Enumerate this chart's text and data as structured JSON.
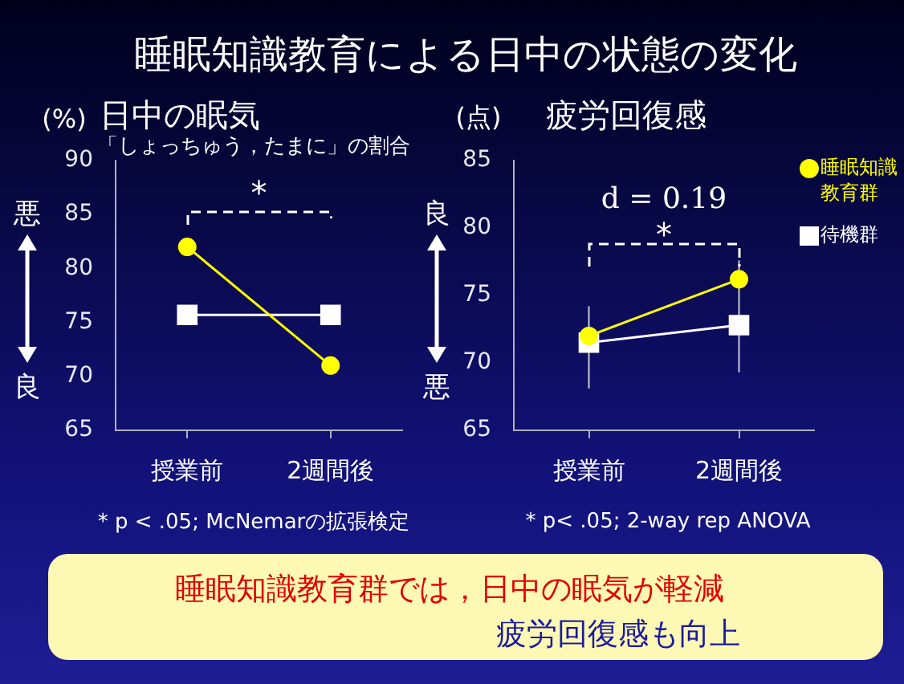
{
  "chart_data": [
    {
      "type": "other",
      "title": "睡眠知識教育による日中の状態の変化"
    },
    {
      "type": "line",
      "title": "日中の眠気",
      "subtitle": "「しょっちゅう，たまに」の割合",
      "ylabel": "(%)",
      "categories": [
        "授業前",
        "2週間後"
      ],
      "series": [
        {
          "color": "#ffff00",
          "values": [
            82,
            71
          ],
          "marker": "circle"
        },
        {
          "color": "#ffffff",
          "values": [
            75.7,
            75.7
          ],
          "marker": "square"
        }
      ],
      "ylim": [
        65,
        90
      ],
      "yticks": [
        65,
        70,
        75,
        80,
        85,
        90
      ],
      "line_style": "solid",
      "annotations": [
        "*",
        "悪",
        "良",
        "* p < .05;  McNemarの拡張検定"
      ]
    },
    {
      "type": "line",
      "title": "疲労回復感",
      "ylabel": "(点)",
      "categories": [
        "授業前",
        "2週間後"
      ],
      "series": [
        {
          "name": "睡眠知識教育群",
          "color": "#ffff00",
          "values": [
            72,
            76.2
          ],
          "marker": "circle"
        },
        {
          "name": "待機群",
          "color": "#ffffff",
          "values": [
            71.5,
            72.8
          ],
          "marker": "square",
          "errors": [
            [
              68.1,
              74.2
            ],
            [
              69.3,
              77.6
            ]
          ]
        }
      ],
      "ylim": [
        65,
        85
      ],
      "yticks": [
        65,
        70,
        75,
        80,
        85
      ],
      "line_style": "solid",
      "legend": "right",
      "annotations": [
        "d = 0.19",
        "*",
        "良",
        "悪",
        "* p< .05;  2-way rep ANOVA"
      ]
    },
    {
      "type": "other",
      "annotations": [
        "睡眠知識教育群では，日中の眠気が軽減",
        "疲労回復感も向上"
      ]
    }
  ]
}
